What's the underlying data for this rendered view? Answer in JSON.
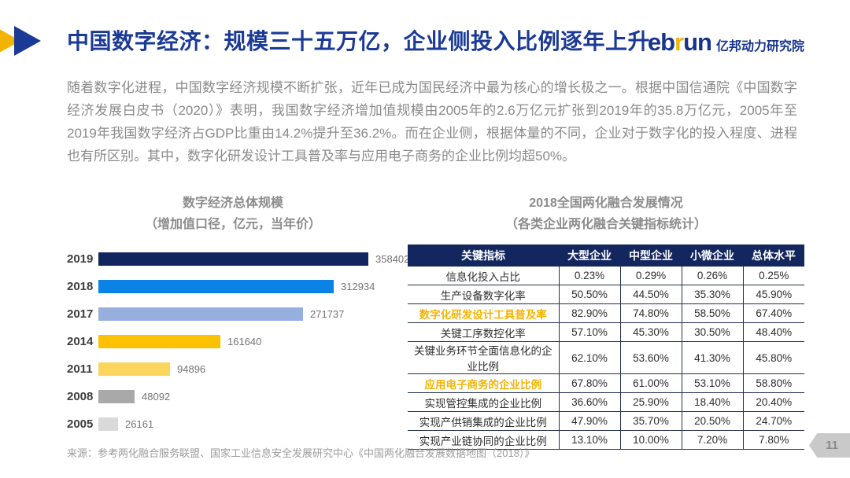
{
  "header": {
    "title": "中国数字经济：规模三十五万亿，企业侧投入比例逐年上升",
    "logo": {
      "eb": "eb",
      "r": "r",
      "un": "un",
      "cn": "亿邦动力研究院"
    }
  },
  "intro": {
    "text": "随着数字化进程，中国数字经济规模不断扩张，近年已成为国民经济中最为核心的增长极之一。根据中国信通院《中国数字经济发展白皮书（2020）》表明，我国数字经济增加值规模由2005年的2.6万亿元扩张到2019年的35.8万亿元，2005年至2019年我国数字经济占GDP比重由14.2%提升至36.2%。而在企业侧，根据体量的不同，企业对于数字化的投入程度、进程也有所区别。其中，数字化研发设计工具普及率与应用电子商务的企业比例均超50%。"
  },
  "chart_data": [
    {
      "type": "bar",
      "orientation": "horizontal",
      "title": "数字经济总体规模",
      "subtitle": "（增加值口径，亿元，当年价）",
      "categories": [
        "2019",
        "2018",
        "2017",
        "2014",
        "2011",
        "2008",
        "2005"
      ],
      "values": [
        358402,
        312934,
        271737,
        161640,
        94896,
        48092,
        26161
      ],
      "bar_colors": [
        "#12255e",
        "#0b82e6",
        "#97afdf",
        "#fcc101",
        "#fcd65c",
        "#a9a9a9",
        "#d9d9d9"
      ],
      "xlim": [
        0,
        358402
      ],
      "value_labels": true,
      "grid": false,
      "legend": "none"
    },
    {
      "type": "table",
      "title": "2018全国两化融合发展情况",
      "subtitle": "（各类企业两化融合关键指标统计）",
      "columns": [
        "关键指标",
        "大型企业",
        "中型企业",
        "小微企业",
        "总体水平"
      ],
      "rows": [
        [
          "信息化投入占比",
          "0.23%",
          "0.29%",
          "0.26%",
          "0.25%"
        ],
        [
          "生产设备数字化率",
          "50.50%",
          "44.50%",
          "35.30%",
          "45.90%"
        ],
        [
          "数字化研发设计工具普及率",
          "82.90%",
          "74.80%",
          "58.50%",
          "67.40%"
        ],
        [
          "关键工序数控化率",
          "57.10%",
          "45.30%",
          "30.50%",
          "48.40%"
        ],
        [
          "关键业务环节全面信息化的企业比例",
          "62.10%",
          "53.60%",
          "41.30%",
          "45.80%"
        ],
        [
          "应用电子商务的企业比例",
          "67.80%",
          "61.00%",
          "53.10%",
          "58.80%"
        ],
        [
          "实现管控集成的企业比例",
          "36.60%",
          "25.90%",
          "18.40%",
          "20.40%"
        ],
        [
          "实现产供销集成的企业比例",
          "47.90%",
          "35.70%",
          "20.50%",
          "24.70%"
        ],
        [
          "实现产业链协同的企业比例",
          "13.10%",
          "10.00%",
          "7.20%",
          "7.80%"
        ]
      ],
      "highlight_rows": [
        2,
        5
      ],
      "header_bg": "#13265e",
      "highlight_color": "#f5b301"
    }
  ],
  "footer": {
    "source": "来源：参考两化融合服务联盟、国家工业信息安全发展研究中心《中国两化融合发展数据地图（2018）》",
    "page_number": "11"
  },
  "colors": {
    "title_blue": "#1b3a96",
    "logo_blue": "#16338e",
    "logo_gold": "#f2b50e",
    "body_gray": "#8a8a8a",
    "table_border": "#232f52"
  }
}
